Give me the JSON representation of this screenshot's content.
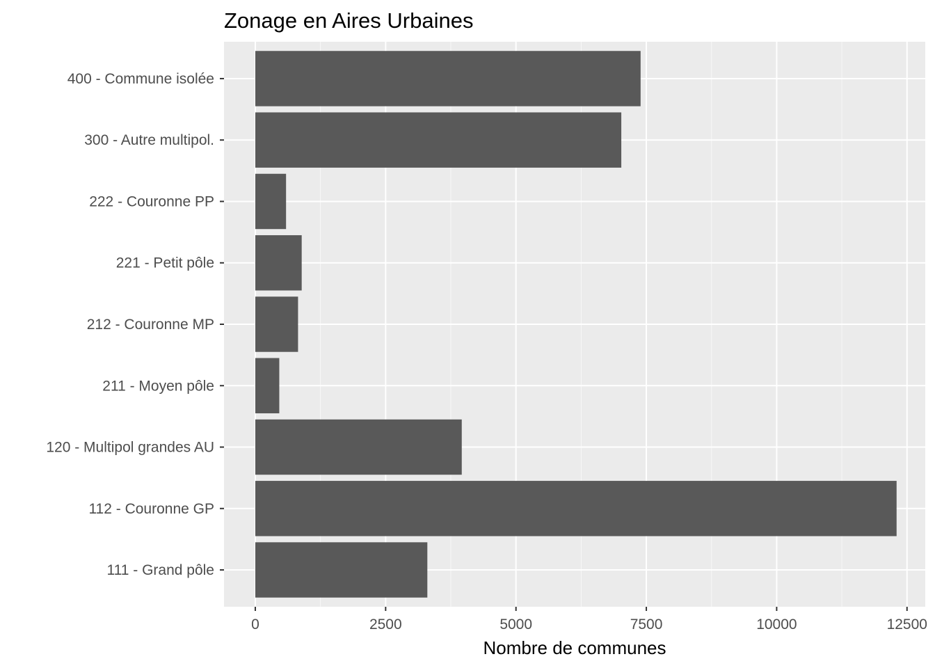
{
  "chart_data": {
    "type": "bar",
    "orientation": "horizontal",
    "title": "Zonage en Aires Urbaines",
    "xlabel": "Nombre de communes",
    "ylabel": "",
    "categories": [
      "111 - Grand pôle",
      "112 - Couronne GP",
      "120 - Multipol grandes AU",
      "211 - Moyen pôle",
      "212 - Couronne MP",
      "221 - Petit pôle",
      "222 - Couronne PP",
      "300 - Autre multipol.",
      "400 - Commune isolée"
    ],
    "values": [
      3300,
      12300,
      3960,
      460,
      820,
      890,
      590,
      7020,
      7390
    ],
    "xlim": [
      -600,
      12850
    ],
    "xticks": [
      0,
      2500,
      5000,
      7500,
      10000,
      12500
    ],
    "xtick_labels": [
      "0",
      "2500",
      "5000",
      "7500",
      "10000",
      "12500"
    ],
    "grid": true,
    "panel_background": "#ebebeb",
    "bar_color": "#595959"
  }
}
